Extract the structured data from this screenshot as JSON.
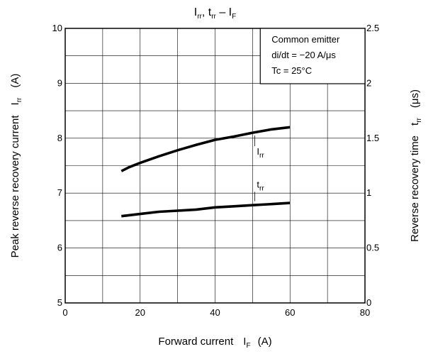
{
  "chart_data": {
    "type": "line",
    "title": {
      "parts": [
        "I",
        "rr",
        ", t",
        "rr",
        " – I",
        "F"
      ]
    },
    "xlabel": {
      "text": "Forward current",
      "symbol": "I",
      "symbol_sub": "F",
      "unit": "(A)"
    },
    "ylabel_left": {
      "text": "Peak reverse recovery current",
      "symbol": "I",
      "symbol_sub": "rr",
      "unit": "(A)"
    },
    "ylabel_right": {
      "text": "Reverse recovery time",
      "symbol": "t",
      "symbol_sub": "rr",
      "unit": "(μs)"
    },
    "xlim": [
      0,
      80
    ],
    "ylim_left": [
      5,
      10
    ],
    "ylim_right": [
      0,
      2.5
    ],
    "x_ticks": [
      "0",
      "20",
      "40",
      "60",
      "80"
    ],
    "y_left_ticks": [
      "5",
      "6",
      "7",
      "8",
      "9",
      "10"
    ],
    "y_right_ticks": [
      "0",
      "0.5",
      "1",
      "1.5",
      "2",
      "2.5"
    ],
    "grid": true,
    "conditions": [
      "Common emitter",
      "di/dt = −20 A/μs",
      "Tc = 25°C"
    ],
    "series": [
      {
        "name": "Irr",
        "label_main": "I",
        "label_sub": "rr",
        "axis": "left",
        "x": [
          15,
          17,
          20,
          25,
          30,
          35,
          40,
          45,
          50,
          55,
          60
        ],
        "y": [
          7.4,
          7.47,
          7.55,
          7.67,
          7.78,
          7.88,
          7.97,
          8.03,
          8.1,
          8.16,
          8.2
        ]
      },
      {
        "name": "trr",
        "label_main": "t",
        "label_sub": "rr",
        "axis": "right",
        "x": [
          15,
          20,
          25,
          30,
          35,
          40,
          45,
          50,
          55,
          60
        ],
        "y": [
          0.79,
          0.81,
          0.83,
          0.84,
          0.85,
          0.87,
          0.88,
          0.89,
          0.9,
          0.91
        ]
      }
    ]
  }
}
